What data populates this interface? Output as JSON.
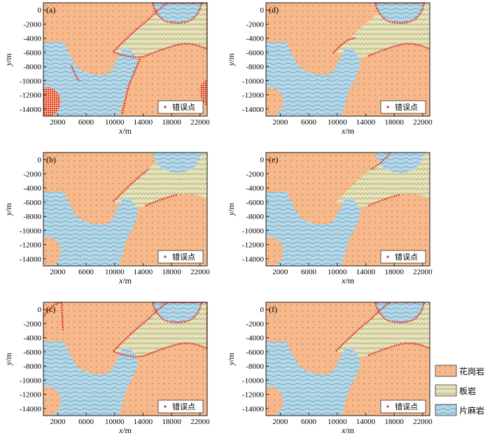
{
  "panels": [
    {
      "id": "a",
      "label": "(a)",
      "variant": "a"
    },
    {
      "id": "d",
      "label": "(d)",
      "variant": "d"
    },
    {
      "id": "b",
      "label": "(b)",
      "variant": "b"
    },
    {
      "id": "e",
      "label": "(e)",
      "variant": "e"
    },
    {
      "id": "c",
      "label": "(c)",
      "variant": "c"
    },
    {
      "id": "f",
      "label": "(f)",
      "variant": "f"
    }
  ],
  "axes": {
    "xlabel_italic": "x",
    "xlabel_unit": "/m",
    "ylabel_italic": "y",
    "ylabel_unit": "/m",
    "x_ticks": [
      "2000",
      "6000",
      "10000",
      "14000",
      "18000",
      "22000"
    ],
    "y_ticks": [
      "0",
      "-2000",
      "-4000",
      "-6000",
      "-8000",
      "-10000",
      "-12000",
      "-14000"
    ],
    "xlim": [
      0,
      23000
    ],
    "ylim": [
      -15000,
      1000
    ]
  },
  "error_legend_label": "错误点",
  "legend": [
    {
      "key": "granite",
      "label": "花岗岩",
      "color": "#f6b98b"
    },
    {
      "key": "slate",
      "label": "板岩",
      "color": "#e6e3bb"
    },
    {
      "key": "gneiss",
      "label": "片麻岩",
      "color": "#b4d8e8"
    }
  ],
  "colors": {
    "error": "#e0322f",
    "granite": "#f6b98b",
    "slate": "#e6e3bb",
    "gneiss": "#b4d8e8",
    "frame": "#000000"
  }
}
